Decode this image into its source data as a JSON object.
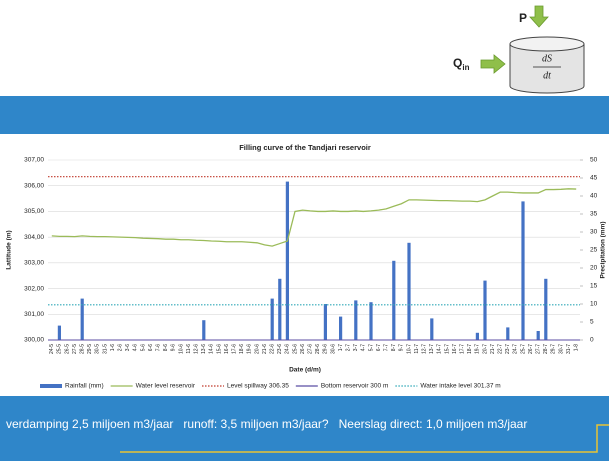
{
  "diagram": {
    "p_label": "P",
    "q_label": "Q",
    "q_subscript": "in",
    "numerator": "dS",
    "denominator": "dt"
  },
  "footer": "verdamping 2,5 miljoen m3/jaar   runoff: 3,5 miljoen m3/jaar?   Neerslag direct: 1,0 miljoen m3/jaar",
  "chart_data": {
    "type": "bar-line",
    "title": "Filling curve of the Tandjari reservoir",
    "x_label": "Date (d/m)",
    "y_label": "Lattitude (m)",
    "y2_label": "Precipitation (mm)",
    "categories": [
      "24-5",
      "25-5",
      "26-5",
      "27-5",
      "28-5",
      "29-5",
      "30-5",
      "31-5",
      "1-6",
      "2-6",
      "3-6",
      "4-6",
      "5-6",
      "6-6",
      "7-6",
      "8-6",
      "9-6",
      "10-6",
      "11-6",
      "12-6",
      "13-6",
      "14-6",
      "15-6",
      "16-6",
      "17-6",
      "18-6",
      "19-6",
      "20-6",
      "21-6",
      "22-6",
      "23-6",
      "24-6",
      "25-6",
      "26-6",
      "27-6",
      "28-6",
      "29-6",
      "30-6",
      "1-7",
      "2-7",
      "3-7",
      "4-7",
      "5-7",
      "6-7",
      "7-7",
      "8-7",
      "9-7",
      "10-7",
      "11-7",
      "12-7",
      "13-7",
      "14-7",
      "15-7",
      "16-7",
      "17-7",
      "18-7",
      "19-7",
      "20-7",
      "21-7",
      "22-7",
      "23-7",
      "24-7",
      "25-7",
      "26-7",
      "27-7",
      "28-7",
      "29-7",
      "30-7",
      "31-7",
      "1-8"
    ],
    "series": [
      {
        "name": "Rainfall (mm)",
        "color": "#4472c4",
        "kind": "bar",
        "axis": "y2",
        "values": [
          0,
          4,
          0,
          0,
          11.5,
          0,
          0,
          0,
          0,
          0,
          0,
          0,
          0,
          0,
          0,
          0,
          0,
          0,
          0,
          0,
          5.5,
          0,
          0,
          0,
          0,
          0,
          0,
          0,
          0,
          11.5,
          17,
          44,
          0,
          0,
          0,
          0,
          10,
          0,
          6.5,
          0,
          11,
          0,
          10.5,
          0,
          0,
          22,
          0,
          27,
          0,
          0,
          6,
          0,
          0,
          0,
          0,
          0,
          2,
          16.5,
          0,
          0,
          3.5,
          0,
          38.5,
          0,
          2.5,
          17,
          0,
          0,
          0,
          0
        ]
      },
      {
        "name": "Water level reservoir",
        "color": "#9bbb59",
        "kind": "line",
        "axis": "y",
        "values": [
          304.05,
          304.03,
          304.03,
          304.02,
          304.05,
          304.03,
          304.02,
          304.02,
          304.01,
          304.0,
          303.99,
          303.98,
          303.96,
          303.95,
          303.94,
          303.92,
          303.92,
          303.9,
          303.9,
          303.88,
          303.87,
          303.85,
          303.84,
          303.82,
          303.82,
          303.82,
          303.8,
          303.78,
          303.7,
          303.65,
          303.75,
          303.85,
          305.0,
          305.05,
          305.02,
          305.0,
          305.0,
          305.02,
          305.0,
          305.0,
          305.02,
          305.0,
          305.02,
          305.05,
          305.1,
          305.2,
          305.3,
          305.45,
          305.45,
          305.44,
          305.43,
          305.42,
          305.42,
          305.41,
          305.4,
          305.4,
          305.38,
          305.45,
          305.6,
          305.75,
          305.75,
          305.73,
          305.72,
          305.72,
          305.72,
          305.85,
          305.85,
          305.86,
          305.88,
          305.87
        ]
      }
    ],
    "reference_lines": [
      {
        "name": "Level spillway 306.35",
        "value": 306.35,
        "color": "#c0392b",
        "dash": "dotted"
      },
      {
        "name": "Bottom reservoir 300 m",
        "value": 300,
        "color": "#5b4ea3",
        "dash": "solid"
      },
      {
        "name": "Water intake level 301.37 m",
        "value": 301.37,
        "color": "#31a9b8",
        "dash": "dotted"
      }
    ],
    "ylim": [
      300,
      307
    ],
    "yticks": [
      {
        "value": 300,
        "label": "300,00"
      },
      {
        "value": 301,
        "label": "301,00"
      },
      {
        "value": 302,
        "label": "302,00"
      },
      {
        "value": 303,
        "label": "303,00"
      },
      {
        "value": 304,
        "label": "304,00"
      },
      {
        "value": 305,
        "label": "305,00"
      },
      {
        "value": 306,
        "label": "306,00"
      },
      {
        "value": 307,
        "label": "307,00"
      }
    ],
    "y2lim": [
      0,
      50
    ],
    "y2ticks": [
      0,
      5,
      10,
      15,
      20,
      25,
      30,
      35,
      40,
      45,
      50
    ],
    "grid": true
  }
}
